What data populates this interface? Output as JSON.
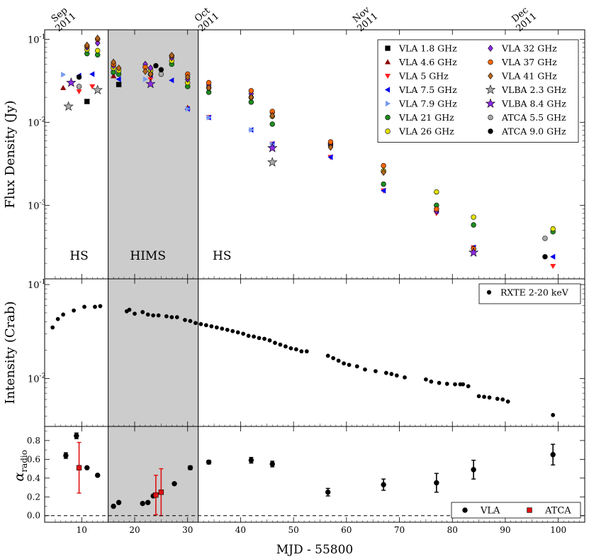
{
  "chart_data": {
    "type": "scatter",
    "title": "",
    "xlabel": "MJD - 55800",
    "xlim": [
      3,
      105
    ],
    "x_ticks": [
      10,
      20,
      30,
      40,
      50,
      60,
      70,
      80,
      90,
      100
    ],
    "x_tick_labels": [
      "10",
      "20",
      "30",
      "40",
      "50",
      "60",
      "70",
      "80",
      "90",
      "100"
    ],
    "month_labels": [
      {
        "x": 7.5,
        "label": [
          "Sep",
          "2011"
        ]
      },
      {
        "x": 34.5,
        "label": [
          "Oct",
          "2011"
        ]
      },
      {
        "x": 64.5,
        "label": [
          "Nov",
          "2011"
        ]
      },
      {
        "x": 94.5,
        "label": [
          "Dec",
          "2011"
        ]
      }
    ],
    "shaded_region": {
      "x": [
        15,
        32
      ],
      "color": "#cccccc"
    },
    "state_labels": [
      {
        "x": 9.5,
        "text": "HS"
      },
      {
        "x": 22.5,
        "text": "HIMS"
      },
      {
        "x": 36.5,
        "text": "HS"
      }
    ],
    "panels": [
      {
        "id": "flux",
        "ylabel": "Flux Density (Jy)",
        "yscale": "log",
        "ylim": [
          0.00013,
          0.13
        ],
        "y_ticks": [
          0.001,
          0.01,
          0.1
        ],
        "y_tick_labels": [
          "10^-3",
          "10^-2",
          "10^-1"
        ],
        "series": [
          {
            "name": "VLA 1.8 GHz",
            "marker": "square",
            "color": "#000000",
            "points": [
              [
                11,
                0.0178
              ],
              [
                17,
                0.0285
              ]
            ]
          },
          {
            "name": "VLA 4.6 GHz",
            "marker": "triangle-up",
            "color": "#8b0000",
            "points": [
              [
                6.5,
                0.026
              ],
              [
                16,
                0.036
              ],
              [
                30,
                0.015
              ]
            ]
          },
          {
            "name": "VLA 5 GHz",
            "marker": "triangle-down",
            "color": "#ff2020",
            "points": [
              [
                9.5,
                0.0235
              ],
              [
                12,
                0.027
              ],
              [
                23,
                0.033
              ],
              [
                34,
                0.0115
              ],
              [
                46,
                0.0055
              ],
              [
                57,
                0.0038
              ],
              [
                67,
                0.0015
              ],
              [
                77,
                0.0008
              ],
              [
                84,
                0.00031
              ],
              [
                99,
                0.000185
              ]
            ]
          },
          {
            "name": "VLA 7.5 GHz",
            "marker": "triangle-left",
            "color": "#0000ee",
            "points": [
              [
                9.5,
                0.0365
              ],
              [
                12,
                0.038
              ],
              [
                17,
                0.033
              ],
              [
                23,
                0.037
              ],
              [
                27,
                0.032
              ],
              [
                30,
                0.0145
              ],
              [
                34,
                0.0114
              ],
              [
                42,
                0.0081
              ],
              [
                46,
                0.0055
              ],
              [
                57,
                0.0038
              ],
              [
                67,
                0.0015
              ],
              [
                77,
                0.00085
              ],
              [
                84,
                0.00031
              ],
              [
                99,
                0.00024
              ]
            ]
          },
          {
            "name": "VLA 7.9 GHz",
            "marker": "triangle-right",
            "color": "#7799ee",
            "points": [
              [
                6.5,
                0.0375
              ],
              [
                16,
                0.04
              ],
              [
                22,
                0.033
              ],
              [
                30,
                0.0145
              ],
              [
                34,
                0.0114
              ],
              [
                42,
                0.0081
              ],
              [
                46,
                0.0054
              ]
            ]
          },
          {
            "name": "VLA 21 GHz",
            "marker": "circle",
            "color": "#1e8c1e",
            "points": [
              [
                11,
                0.067
              ],
              [
                13,
                0.065
              ],
              [
                16,
                0.04
              ],
              [
                17,
                0.038
              ],
              [
                23,
                0.038
              ],
              [
                27,
                0.05
              ],
              [
                30,
                0.027
              ],
              [
                34,
                0.023
              ],
              [
                42,
                0.0175
              ],
              [
                46,
                0.0095
              ],
              [
                57,
                0.0053
              ],
              [
                67,
                0.0018
              ],
              [
                77,
                0.001
              ],
              [
                84,
                0.00058
              ],
              [
                99,
                0.00048
              ]
            ]
          },
          {
            "name": "VLA 26 GHz",
            "marker": "circle",
            "color": "#e0e000",
            "points": [
              [
                11,
                0.075
              ],
              [
                13,
                0.073
              ],
              [
                16,
                0.045
              ],
              [
                17,
                0.042
              ],
              [
                23,
                0.042
              ],
              [
                27,
                0.055
              ],
              [
                30,
                0.03
              ],
              [
                34,
                0.026
              ],
              [
                42,
                0.02
              ],
              [
                46,
                0.0118
              ],
              [
                57,
                0.0055
              ],
              [
                67,
                0.0026
              ],
              [
                77,
                0.00145
              ],
              [
                84,
                0.00072
              ],
              [
                99,
                0.00052
              ]
            ]
          },
          {
            "name": "VLA 32 GHz",
            "marker": "diamond",
            "color": "#8b2be2",
            "points": [
              [
                11,
                0.08
              ],
              [
                13,
                0.09
              ],
              [
                16,
                0.048
              ],
              [
                22,
                0.05
              ],
              [
                23,
                0.045
              ],
              [
                27,
                0.06
              ],
              [
                30,
                0.033
              ],
              [
                34,
                0.028
              ],
              [
                42,
                0.022
              ],
              [
                46,
                0.013
              ],
              [
                57,
                0.0055
              ],
              [
                67,
                0.0025
              ],
              [
                77,
                0.00085
              ],
              [
                84,
                0.0003
              ]
            ]
          },
          {
            "name": "VLA 37 GHz",
            "marker": "circle",
            "color": "#ff6600",
            "points": [
              [
                11,
                0.083
              ],
              [
                13,
                0.1
              ],
              [
                16,
                0.05
              ],
              [
                22,
                0.046
              ],
              [
                27,
                0.063
              ],
              [
                30,
                0.038
              ],
              [
                34,
                0.03
              ],
              [
                42,
                0.024
              ],
              [
                46,
                0.0135
              ],
              [
                57,
                0.0058
              ],
              [
                67,
                0.003
              ],
              [
                77,
                0.0009
              ],
              [
                84,
                0.0003
              ]
            ]
          },
          {
            "name": "VLA 41 GHz",
            "marker": "diamond",
            "color": "#b5651d",
            "points": [
              [
                11,
                0.085
              ],
              [
                13,
                0.103
              ],
              [
                16,
                0.053
              ],
              [
                17,
                0.045
              ],
              [
                22,
                0.041
              ],
              [
                23,
                0.038
              ],
              [
                27,
                0.064
              ],
              [
                30,
                0.035
              ],
              [
                34,
                0.026
              ],
              [
                42,
                0.02
              ],
              [
                46,
                0.012
              ],
              [
                57,
                0.005
              ],
              [
                67,
                0.0025
              ]
            ]
          },
          {
            "name": "VLBA 2.3 GHz",
            "marker": "star",
            "color": "#aaaaaa",
            "points": [
              [
                7.5,
                0.0155
              ],
              [
                13,
                0.0245
              ],
              [
                46,
                0.0033
              ]
            ]
          },
          {
            "name": "VLBA 8.4 GHz",
            "marker": "star",
            "color": "#8a2be2",
            "points": [
              [
                8,
                0.03
              ],
              [
                23,
                0.029
              ],
              [
                46,
                0.0049
              ],
              [
                84,
                0.00027
              ]
            ]
          },
          {
            "name": "ATCA 5.5 GHz",
            "marker": "circle",
            "color": "#aaaaaa",
            "points": [
              [
                9.5,
                0.027
              ],
              [
                25,
                0.038
              ],
              [
                97.5,
                0.0004
              ]
            ]
          },
          {
            "name": "ATCA 9.0 GHz",
            "marker": "circle",
            "color": "#000000",
            "points": [
              [
                9.5,
                0.035
              ],
              [
                24,
                0.048
              ],
              [
                25,
                0.043
              ],
              [
                97.5,
                0.00024
              ]
            ]
          }
        ],
        "legend": {
          "position": "top-right",
          "columns": 2
        }
      },
      {
        "id": "xray",
        "ylabel": "Intensity (Crab)",
        "yscale": "log",
        "ylim": [
          0.0031,
          0.115
        ],
        "y_ticks": [
          0.01,
          0.1
        ],
        "y_tick_labels": [
          "10^-2",
          "10^-1"
        ],
        "series": [
          {
            "name": "RXTE 2-20 keV",
            "marker": "circle",
            "color": "#000000",
            "x": [
              4.5,
              5.5,
              6.5,
              8.5,
              10.5,
              12.5,
              13.5,
              18.5,
              19,
              20,
              21.5,
              22.5,
              23.5,
              24.5,
              26,
              27,
              28,
              29.5,
              30.5,
              31.5,
              32.5,
              33.5,
              34.5,
              35.5,
              36.5,
              37.5,
              38.5,
              39.5,
              40.5,
              41.5,
              42.5,
              43.5,
              44.5,
              45.5,
              46.5,
              47.5,
              48.5,
              49.5,
              50.5,
              51.5,
              52.5,
              56.5,
              57.5,
              58.5,
              59.5,
              60.5,
              62,
              63.5,
              65.5,
              67.5,
              68.5,
              69.5,
              71,
              75,
              76,
              77.5,
              79,
              80.5,
              81.5,
              82,
              83,
              85,
              86,
              87,
              88.5,
              89.5,
              90.5,
              99
            ],
            "y": [
              0.035,
              0.043,
              0.048,
              0.053,
              0.058,
              0.058,
              0.059,
              0.052,
              0.054,
              0.049,
              0.051,
              0.048,
              0.047,
              0.047,
              0.046,
              0.045,
              0.045,
              0.042,
              0.041,
              0.039,
              0.038,
              0.037,
              0.036,
              0.035,
              0.034,
              0.033,
              0.032,
              0.031,
              0.03,
              0.0285,
              0.028,
              0.027,
              0.0265,
              0.0255,
              0.024,
              0.023,
              0.022,
              0.021,
              0.0205,
              0.0195,
              0.0195,
              0.0175,
              0.0165,
              0.0155,
              0.0145,
              0.014,
              0.0135,
              0.0125,
              0.012,
              0.0115,
              0.0112,
              0.0108,
              0.0103,
              0.0098,
              0.0093,
              0.009,
              0.0088,
              0.0087,
              0.0087,
              0.0087,
              0.0083,
              0.0065,
              0.0064,
              0.0063,
              0.0061,
              0.006,
              0.0057,
              0.0041
            ]
          }
        ],
        "legend": {
          "position": "top-right",
          "columns": 1
        }
      },
      {
        "id": "alpha",
        "ylabel": "α_radio",
        "yscale": "linear",
        "ylim": [
          -0.07,
          0.95
        ],
        "y_ticks": [
          0.0,
          0.2,
          0.4,
          0.6,
          0.8
        ],
        "y_tick_labels": [
          "0.0",
          "0.2",
          "0.4",
          "0.6",
          "0.8"
        ],
        "hline": 0,
        "series": [
          {
            "name": "VLA",
            "marker": "circle",
            "color": "#000000",
            "points": [
              [
                7,
                0.64,
                0.03
              ],
              [
                9,
                0.85,
                0.03
              ],
              [
                11,
                0.51,
                0.01
              ],
              [
                13,
                0.43,
                0.01
              ],
              [
                16,
                0.1,
                0.01
              ],
              [
                17,
                0.14,
                0.01
              ],
              [
                21.5,
                0.13,
                0.01
              ],
              [
                22.5,
                0.14,
                0.01
              ],
              [
                23.5,
                0.21,
                0.01
              ],
              [
                27.5,
                0.34,
                0.01
              ],
              [
                30.5,
                0.51,
                0.02
              ],
              [
                34,
                0.57,
                0.02
              ],
              [
                42,
                0.59,
                0.03
              ],
              [
                46,
                0.55,
                0.03
              ],
              [
                56.5,
                0.25,
                0.04
              ],
              [
                67,
                0.33,
                0.06
              ],
              [
                77,
                0.35,
                0.1
              ],
              [
                84,
                0.49,
                0.1
              ],
              [
                99,
                0.65,
                0.11
              ]
            ]
          },
          {
            "name": "ATCA",
            "marker": "square",
            "color": "#dd1111",
            "points": [
              [
                9.5,
                0.51,
                0.27
              ],
              [
                24,
                0.22,
                0.21
              ],
              [
                25,
                0.25,
                0.25
              ]
            ]
          }
        ],
        "legend": {
          "position": "bottom-right",
          "columns": 2
        }
      }
    ]
  }
}
